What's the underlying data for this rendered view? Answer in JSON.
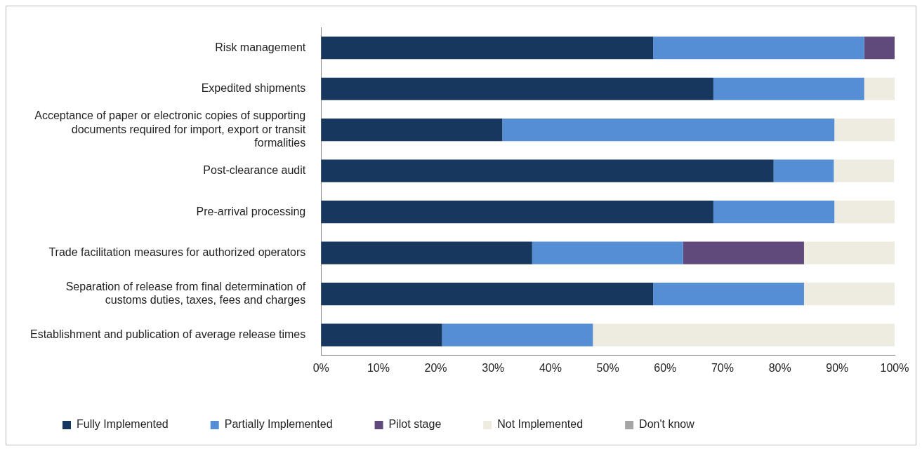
{
  "chart_data": {
    "type": "bar",
    "orientation": "horizontal",
    "stacked": true,
    "legend": "bottom",
    "grid": false,
    "categories": [
      "Risk management",
      "Expedited shipments",
      "Acceptance of paper or electronic copies of supporting documents required for import, export or transit formalities",
      "Post-clearance audit",
      "Pre-arrival processing",
      "Trade facilitation measures for authorized operators",
      "Separation of release from final determination of customs duties, taxes, fees and charges",
      "Establishment and publication of average release times"
    ],
    "series": [
      {
        "name": "Fully Implemented",
        "color": "#17375e",
        "values": [
          57.9,
          68.4,
          31.6,
          78.9,
          68.4,
          36.8,
          57.9,
          21.1
        ]
      },
      {
        "name": "Partially Implemented",
        "color": "#558ed5",
        "values": [
          36.8,
          26.3,
          57.9,
          10.5,
          21.1,
          26.3,
          26.3,
          26.3
        ]
      },
      {
        "name": "Pilot stage",
        "color": "#604a7b",
        "values": [
          5.3,
          0,
          0,
          0,
          0,
          21.1,
          0,
          0
        ]
      },
      {
        "name": "Not Implemented",
        "color": "#eeece1",
        "values": [
          0,
          5.3,
          10.5,
          10.5,
          10.5,
          15.8,
          15.8,
          52.6
        ]
      },
      {
        "name": "Don't know",
        "color": "#a6a6a6",
        "values": [
          0,
          0,
          0,
          0,
          0,
          0,
          0,
          0
        ]
      }
    ],
    "xlim": [
      0,
      100
    ],
    "xticks": [
      {
        "value": 0,
        "label": "0%"
      },
      {
        "value": 10,
        "label": "10%"
      },
      {
        "value": 20,
        "label": "20%"
      },
      {
        "value": 30,
        "label": "30%"
      },
      {
        "value": 40,
        "label": "40%"
      },
      {
        "value": 50,
        "label": "50%"
      },
      {
        "value": 60,
        "label": "60%"
      },
      {
        "value": 70,
        "label": "70%"
      },
      {
        "value": 80,
        "label": "80%"
      },
      {
        "value": 90,
        "label": "90%"
      },
      {
        "value": 100,
        "label": "100%"
      }
    ]
  }
}
